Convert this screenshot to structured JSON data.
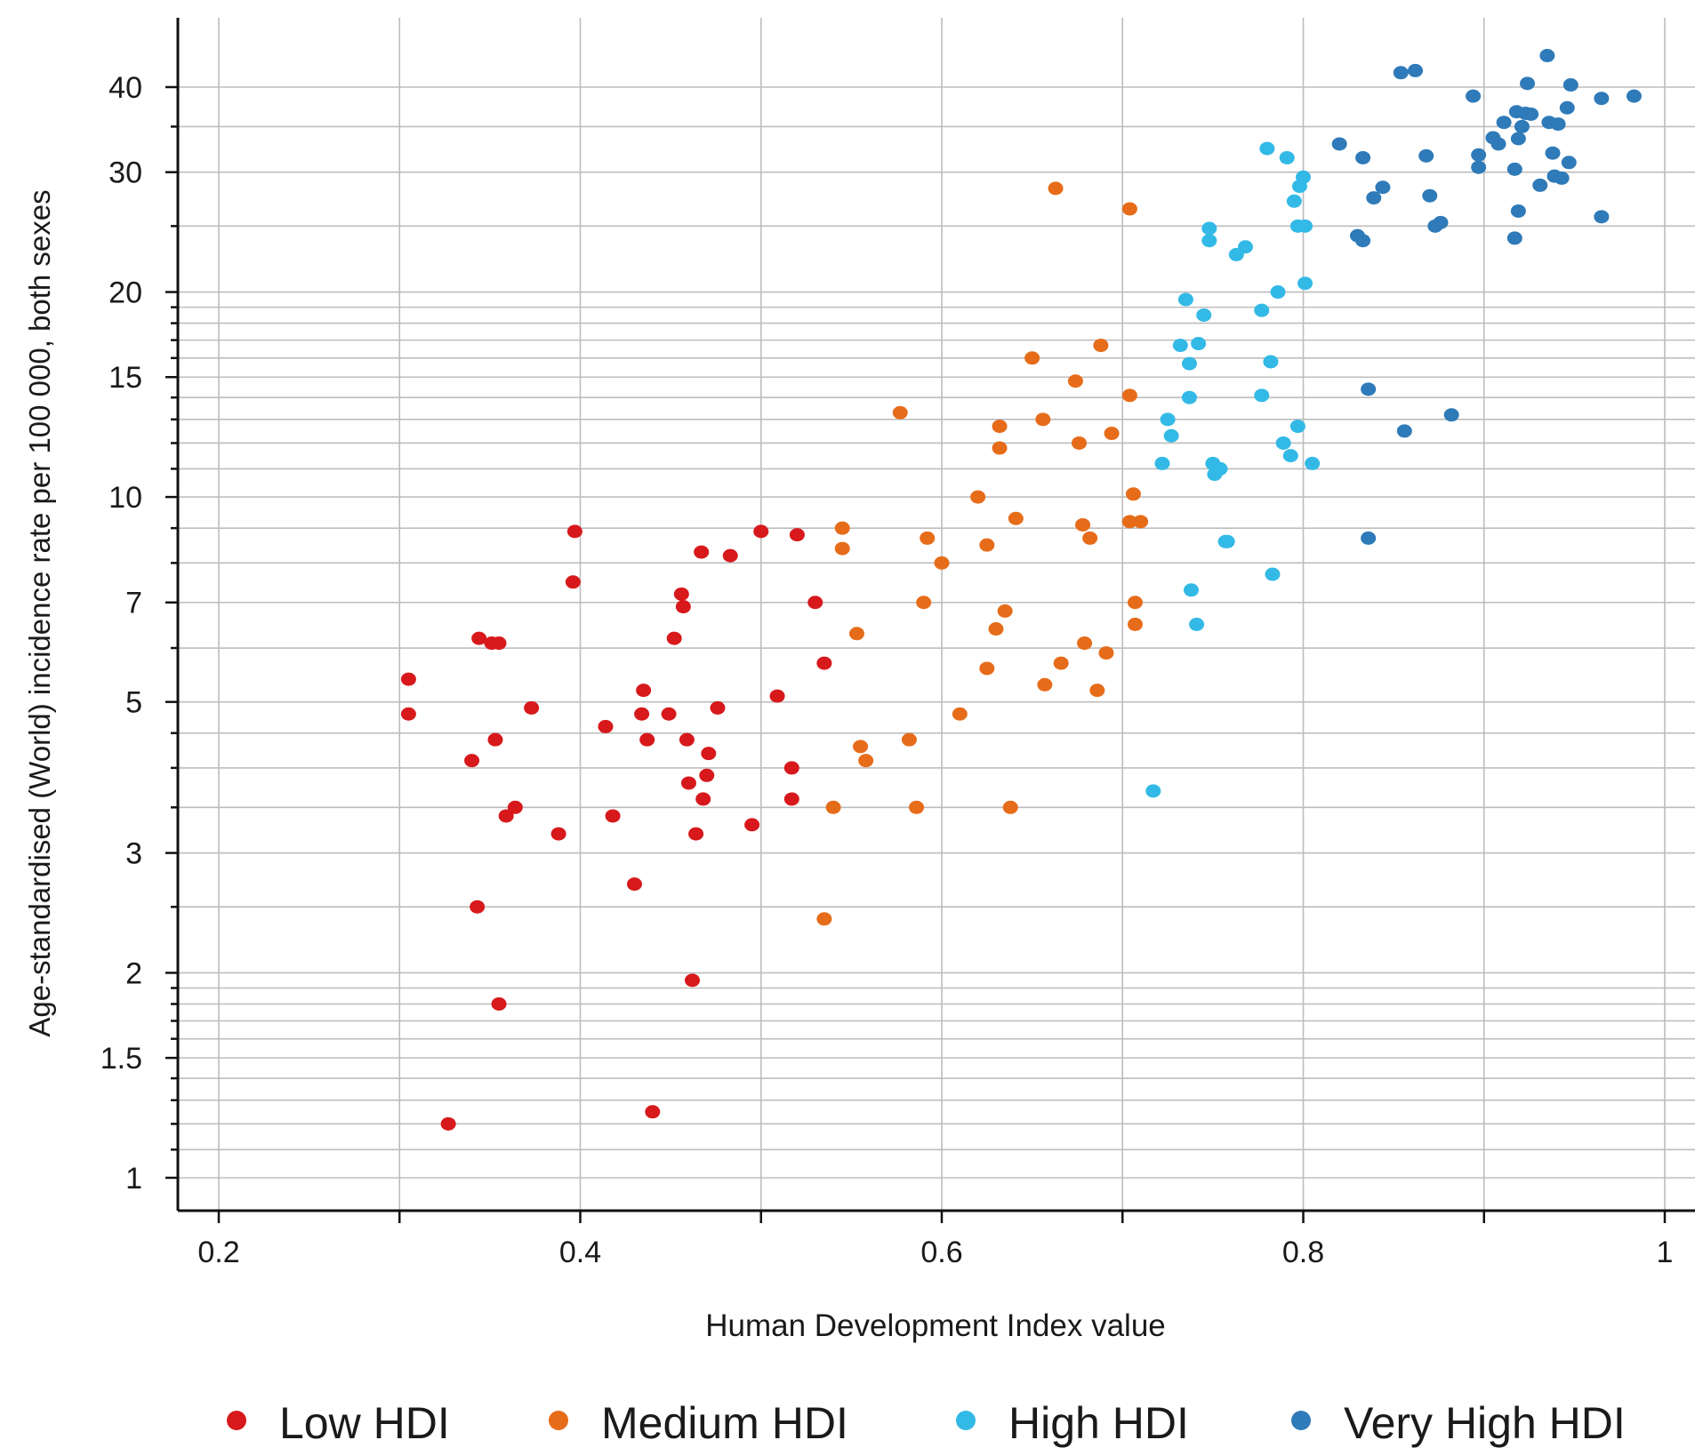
{
  "chart_data": {
    "type": "scatter",
    "title": "",
    "xlabel": "Human Development Index value",
    "ylabel": "Age-standardised (World) incidence rate per 100 000, both sexes",
    "xlim": [
      0.18,
      1.0
    ],
    "ylim": [
      0.93,
      46
    ],
    "yscale": "log",
    "grid": true,
    "legend_position": "bottom",
    "x_ticks": [
      {
        "value": 0.2,
        "label": "0.2"
      },
      {
        "value": 0.4,
        "label": "0.4"
      },
      {
        "value": 0.6,
        "label": "0.6"
      },
      {
        "value": 0.8,
        "label": "0.8"
      },
      {
        "value": 1.0,
        "label": "1"
      }
    ],
    "x_gridlines": [
      0.2,
      0.3,
      0.4,
      0.5,
      0.6,
      0.7,
      0.8,
      0.9,
      1.0
    ],
    "y_ticks": [
      {
        "value": 1,
        "label": "1"
      },
      {
        "value": 1.5,
        "label": "1.5"
      },
      {
        "value": 2,
        "label": "2"
      },
      {
        "value": 3,
        "label": "3"
      },
      {
        "value": 5,
        "label": "5"
      },
      {
        "value": 7,
        "label": "7"
      },
      {
        "value": 10,
        "label": "10"
      },
      {
        "value": 15,
        "label": "15"
      },
      {
        "value": 20,
        "label": "20"
      },
      {
        "value": 30,
        "label": "30"
      },
      {
        "value": 40,
        "label": "40"
      }
    ],
    "y_gridlines": [
      1,
      1.1,
      1.2,
      1.3,
      1.4,
      1.5,
      1.6,
      1.7,
      1.8,
      1.9,
      2,
      2.5,
      3,
      3.5,
      4,
      4.5,
      5,
      6,
      7,
      8,
      9,
      10,
      11,
      12,
      13,
      14,
      15,
      16,
      17,
      18,
      19,
      20,
      25,
      30,
      35,
      40
    ],
    "series": [
      {
        "name": "Low HDI",
        "color": "#d7191c",
        "points": [
          [
            0.305,
            5.4
          ],
          [
            0.305,
            4.8
          ],
          [
            0.327,
            1.2
          ],
          [
            0.34,
            4.1
          ],
          [
            0.343,
            2.5
          ],
          [
            0.344,
            6.2
          ],
          [
            0.351,
            6.1
          ],
          [
            0.353,
            4.4
          ],
          [
            0.355,
            6.1
          ],
          [
            0.355,
            1.8
          ],
          [
            0.359,
            3.4
          ],
          [
            0.364,
            3.5
          ],
          [
            0.373,
            4.9
          ],
          [
            0.388,
            3.2
          ],
          [
            0.397,
            8.9
          ],
          [
            0.396,
            7.5
          ],
          [
            0.414,
            4.6
          ],
          [
            0.418,
            3.4
          ],
          [
            0.43,
            2.7
          ],
          [
            0.434,
            4.8
          ],
          [
            0.435,
            5.2
          ],
          [
            0.437,
            4.4
          ],
          [
            0.44,
            1.25
          ],
          [
            0.449,
            4.8
          ],
          [
            0.452,
            6.2
          ],
          [
            0.456,
            7.2
          ],
          [
            0.457,
            6.9
          ],
          [
            0.459,
            4.4
          ],
          [
            0.46,
            3.8
          ],
          [
            0.462,
            1.95
          ],
          [
            0.464,
            3.2
          ],
          [
            0.468,
            3.6
          ],
          [
            0.47,
            3.9
          ],
          [
            0.471,
            4.2
          ],
          [
            0.467,
            8.3
          ],
          [
            0.476,
            4.9
          ],
          [
            0.483,
            8.2
          ],
          [
            0.495,
            3.3
          ],
          [
            0.5,
            8.9
          ],
          [
            0.509,
            5.1
          ],
          [
            0.517,
            4.0
          ],
          [
            0.517,
            3.6
          ],
          [
            0.52,
            8.8
          ],
          [
            0.53,
            7.0
          ],
          [
            0.535,
            5.7
          ]
        ]
      },
      {
        "name": "Medium HDI",
        "color": "#e66c1a",
        "points": [
          [
            0.535,
            2.4
          ],
          [
            0.54,
            3.5
          ],
          [
            0.545,
            9.0
          ],
          [
            0.545,
            8.4
          ],
          [
            0.553,
            6.3
          ],
          [
            0.555,
            4.3
          ],
          [
            0.558,
            4.1
          ],
          [
            0.577,
            13.3
          ],
          [
            0.582,
            4.4
          ],
          [
            0.586,
            3.5
          ],
          [
            0.59,
            7.0
          ],
          [
            0.592,
            8.7
          ],
          [
            0.6,
            8.0
          ],
          [
            0.61,
            4.8
          ],
          [
            0.62,
            10.0
          ],
          [
            0.625,
            8.5
          ],
          [
            0.625,
            5.6
          ],
          [
            0.63,
            6.4
          ],
          [
            0.632,
            12.7
          ],
          [
            0.632,
            11.8
          ],
          [
            0.635,
            6.8
          ],
          [
            0.638,
            3.5
          ],
          [
            0.641,
            9.3
          ],
          [
            0.65,
            16.0
          ],
          [
            0.656,
            13.0
          ],
          [
            0.657,
            5.3
          ],
          [
            0.663,
            28.4
          ],
          [
            0.666,
            5.7
          ],
          [
            0.674,
            14.8
          ],
          [
            0.676,
            12.0
          ],
          [
            0.678,
            9.1
          ],
          [
            0.679,
            6.1
          ],
          [
            0.682,
            8.7
          ],
          [
            0.686,
            5.2
          ],
          [
            0.688,
            16.7
          ],
          [
            0.691,
            5.9
          ],
          [
            0.694,
            12.4
          ],
          [
            0.704,
            14.1
          ],
          [
            0.704,
            26.5
          ],
          [
            0.704,
            9.2
          ],
          [
            0.706,
            10.1
          ],
          [
            0.707,
            7.0
          ],
          [
            0.707,
            6.5
          ],
          [
            0.71,
            9.2
          ]
        ]
      },
      {
        "name": "High HDI",
        "color": "#33b9e6",
        "points": [
          [
            0.717,
            3.7
          ],
          [
            0.722,
            11.2
          ],
          [
            0.725,
            13.0
          ],
          [
            0.727,
            12.3
          ],
          [
            0.732,
            16.7
          ],
          [
            0.735,
            19.5
          ],
          [
            0.737,
            14.0
          ],
          [
            0.737,
            15.7
          ],
          [
            0.738,
            7.3
          ],
          [
            0.741,
            6.5
          ],
          [
            0.742,
            16.8
          ],
          [
            0.745,
            18.5
          ],
          [
            0.748,
            24.8
          ],
          [
            0.748,
            23.8
          ],
          [
            0.75,
            11.2
          ],
          [
            0.751,
            10.8
          ],
          [
            0.754,
            11.0
          ],
          [
            0.757,
            8.6
          ],
          [
            0.758,
            8.6
          ],
          [
            0.763,
            22.7
          ],
          [
            0.768,
            23.3
          ],
          [
            0.777,
            18.8
          ],
          [
            0.777,
            14.1
          ],
          [
            0.78,
            32.5
          ],
          [
            0.782,
            15.8
          ],
          [
            0.783,
            7.7
          ],
          [
            0.786,
            20.0
          ],
          [
            0.789,
            12.0
          ],
          [
            0.791,
            31.5
          ],
          [
            0.793,
            11.5
          ],
          [
            0.795,
            27.2
          ],
          [
            0.797,
            25.0
          ],
          [
            0.797,
            12.7
          ],
          [
            0.798,
            28.6
          ],
          [
            0.8,
            29.5
          ],
          [
            0.801,
            25.0
          ],
          [
            0.801,
            20.6
          ],
          [
            0.805,
            11.2
          ]
        ]
      },
      {
        "name": "Very High HDI",
        "color": "#2f7ab8",
        "points": [
          [
            0.82,
            33.0
          ],
          [
            0.83,
            24.2
          ],
          [
            0.833,
            23.8
          ],
          [
            0.833,
            31.5
          ],
          [
            0.836,
            14.4
          ],
          [
            0.836,
            8.7
          ],
          [
            0.839,
            27.5
          ],
          [
            0.844,
            28.5
          ],
          [
            0.854,
            42.0
          ],
          [
            0.856,
            12.5
          ],
          [
            0.862,
            42.3
          ],
          [
            0.868,
            31.7
          ],
          [
            0.87,
            27.7
          ],
          [
            0.873,
            25.0
          ],
          [
            0.876,
            25.3
          ],
          [
            0.882,
            13.2
          ],
          [
            0.894,
            38.8
          ],
          [
            0.897,
            30.5
          ],
          [
            0.897,
            31.8
          ],
          [
            0.905,
            33.7
          ],
          [
            0.908,
            33.0
          ],
          [
            0.911,
            35.5
          ],
          [
            0.917,
            24.0
          ],
          [
            0.917,
            30.3
          ],
          [
            0.918,
            36.8
          ],
          [
            0.919,
            33.6
          ],
          [
            0.919,
            26.3
          ],
          [
            0.921,
            35.0
          ],
          [
            0.923,
            36.6
          ],
          [
            0.924,
            40.5
          ],
          [
            0.926,
            36.5
          ],
          [
            0.931,
            28.7
          ],
          [
            0.935,
            44.5
          ],
          [
            0.936,
            35.5
          ],
          [
            0.938,
            32.0
          ],
          [
            0.939,
            29.6
          ],
          [
            0.941,
            35.3
          ],
          [
            0.943,
            29.4
          ],
          [
            0.946,
            37.3
          ],
          [
            0.948,
            40.3
          ],
          [
            0.947,
            31.0
          ],
          [
            0.965,
            38.5
          ],
          [
            0.965,
            25.8
          ],
          [
            0.983,
            38.8
          ]
        ]
      }
    ]
  }
}
